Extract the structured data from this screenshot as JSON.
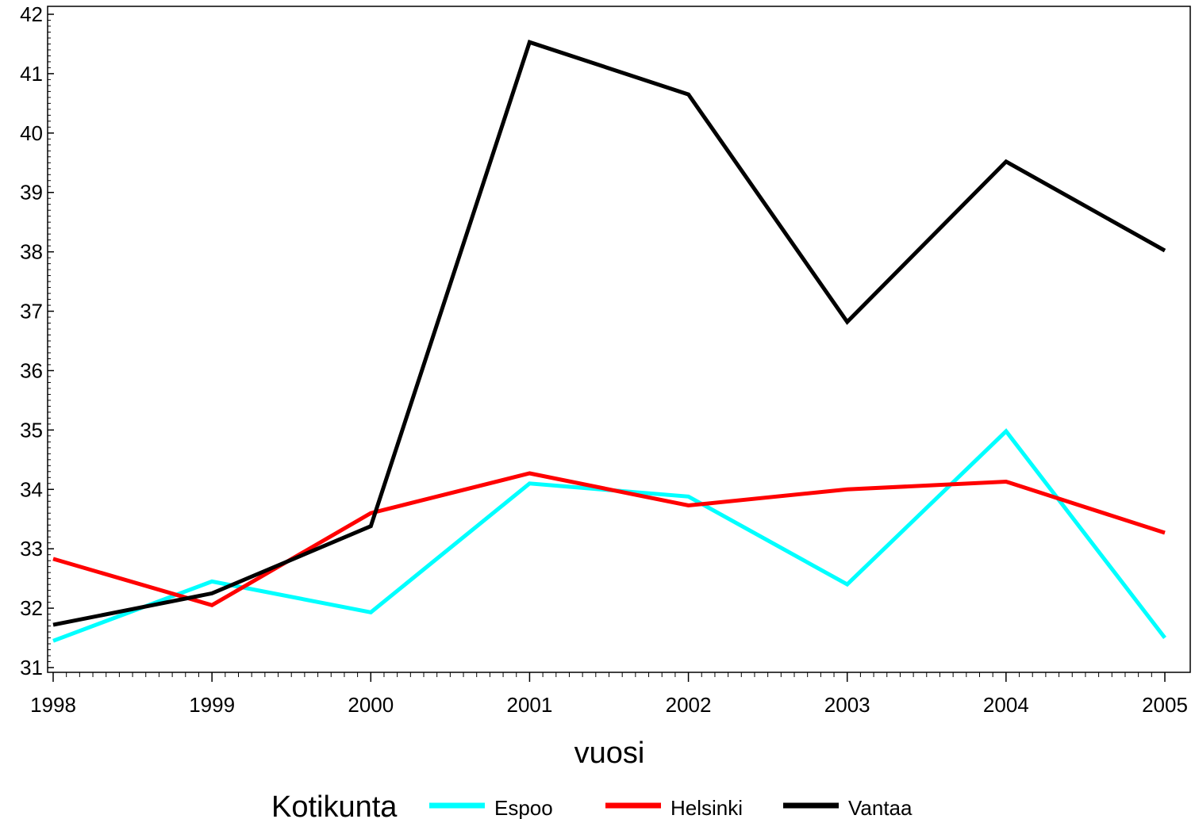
{
  "chart_data": {
    "type": "line",
    "title": "",
    "xlabel": "vuosi",
    "ylabel": "",
    "x": [
      "1998",
      "1999",
      "2000",
      "2001",
      "2002",
      "2003",
      "2004",
      "2005"
    ],
    "ylim": [
      31,
      42
    ],
    "yticks": [
      "31",
      "32",
      "33",
      "34",
      "35",
      "36",
      "37",
      "38",
      "39",
      "40",
      "41",
      "42"
    ],
    "grid": false,
    "legend": {
      "title": "Kotikunta",
      "placement": "bottom"
    },
    "series": [
      {
        "name": "Espoo",
        "color": "#00FFFF",
        "values": [
          31.45,
          32.45,
          31.93,
          34.1,
          33.88,
          32.4,
          34.98,
          31.5
        ]
      },
      {
        "name": "Helsinki",
        "color": "#FF0000",
        "values": [
          32.83,
          32.05,
          33.6,
          34.27,
          33.73,
          34.0,
          34.13,
          33.27
        ]
      },
      {
        "name": "Vantaa",
        "color": "#000000",
        "values": [
          31.72,
          32.25,
          33.38,
          41.53,
          40.65,
          36.82,
          39.52,
          38.02
        ]
      }
    ]
  }
}
